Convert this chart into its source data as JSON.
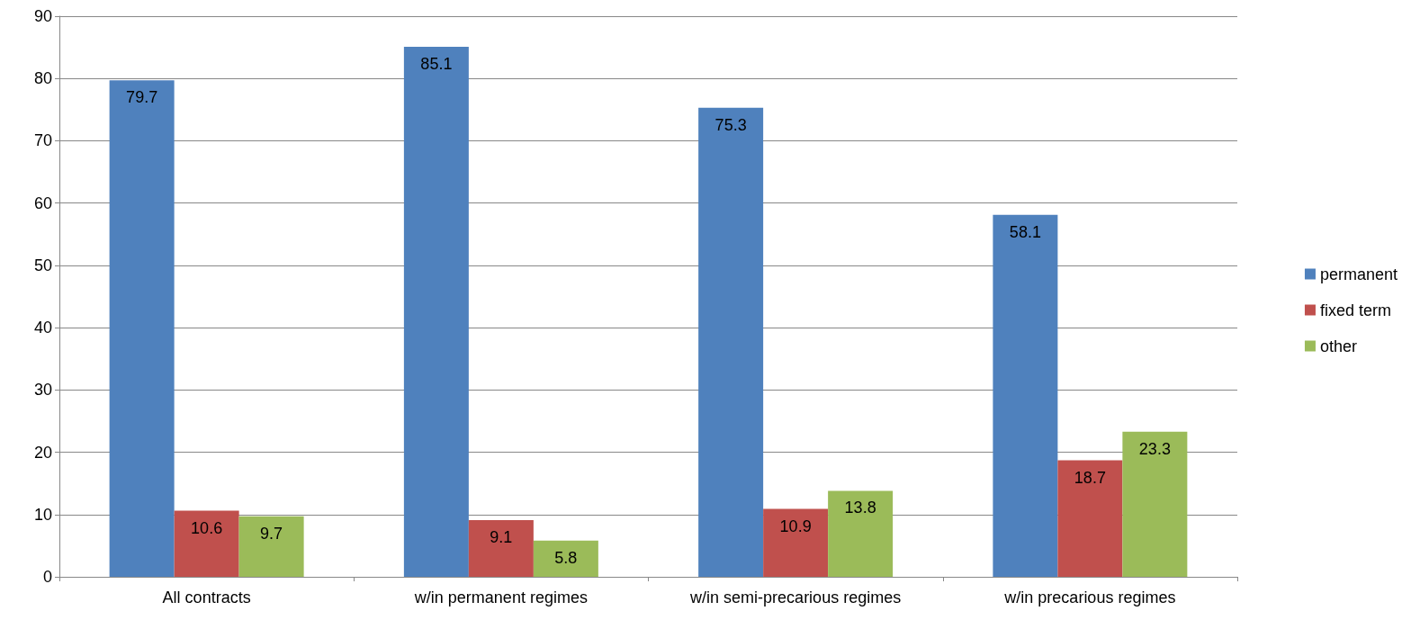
{
  "chart_data": {
    "type": "bar",
    "categories": [
      "All contracts",
      "w/in permanent regimes",
      "w/in semi-precarious regimes",
      "w/in precarious regimes"
    ],
    "series": [
      {
        "name": "permanent",
        "color": "#4f81bd",
        "values": [
          79.7,
          85.1,
          75.3,
          58.1
        ]
      },
      {
        "name": "fixed term",
        "color": "#c0504d",
        "values": [
          10.6,
          9.1,
          10.9,
          18.7
        ]
      },
      {
        "name": "other",
        "color": "#9bbb59",
        "values": [
          9.7,
          5.8,
          13.8,
          23.3
        ]
      }
    ],
    "ylim": [
      0,
      90
    ],
    "yticks": [
      0,
      10,
      20,
      30,
      40,
      50,
      60,
      70,
      80,
      90
    ],
    "grid": "y",
    "legend": "right",
    "data_labels": true
  }
}
